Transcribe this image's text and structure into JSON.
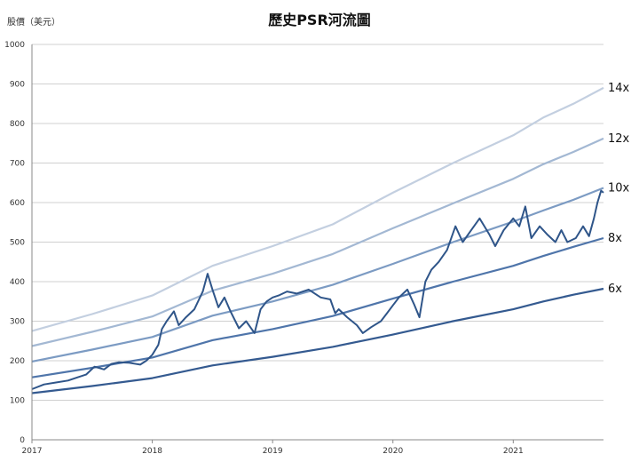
{
  "chart_data": {
    "type": "line",
    "title": "歷史PSR河流圖",
    "ylabel": "股價（美元）",
    "xlabel": "",
    "ylim": [
      0,
      1000
    ],
    "y_ticks": [
      0,
      100,
      200,
      300,
      400,
      500,
      600,
      700,
      800,
      900,
      1000
    ],
    "x_range": [
      2017,
      2021.75
    ],
    "x_ticks": [
      "2017",
      "2018",
      "2019",
      "2020",
      "2021"
    ],
    "x_tick_values": [
      2017,
      2018,
      2019,
      2020,
      2021
    ],
    "grid": "horizontal",
    "bands": [
      {
        "label": "14x",
        "color": "#c3cfe0",
        "x": [
          2017,
          2017.5,
          2018,
          2018.5,
          2019,
          2019.5,
          2020,
          2020.5,
          2021,
          2021.25,
          2021.5,
          2021.75
        ],
        "y": [
          275,
          318,
          365,
          440,
          490,
          545,
          625,
          700,
          770,
          815,
          850,
          890
        ]
      },
      {
        "label": "12x",
        "color": "#a3b8d3",
        "x": [
          2017,
          2017.5,
          2018,
          2018.5,
          2019,
          2019.5,
          2020,
          2020.5,
          2021,
          2021.25,
          2021.5,
          2021.75
        ],
        "y": [
          237,
          273,
          312,
          377,
          420,
          470,
          535,
          598,
          660,
          697,
          728,
          762
        ]
      },
      {
        "label": "10x",
        "color": "#7c9bc3",
        "x": [
          2017,
          2017.5,
          2018,
          2018.5,
          2019,
          2019.5,
          2020,
          2020.5,
          2021,
          2021.25,
          2021.5,
          2021.75
        ],
        "y": [
          198,
          228,
          260,
          314,
          350,
          392,
          445,
          500,
          552,
          580,
          607,
          637
        ]
      },
      {
        "label": "8x",
        "color": "#4f75aa",
        "x": [
          2017,
          2017.5,
          2018,
          2018.5,
          2019,
          2019.5,
          2020,
          2020.5,
          2021,
          2021.25,
          2021.5,
          2021.75
        ],
        "y": [
          158,
          182,
          208,
          252,
          280,
          313,
          357,
          400,
          440,
          465,
          488,
          510
        ]
      },
      {
        "label": "6x",
        "color": "#345a90",
        "x": [
          2017,
          2017.5,
          2018,
          2018.5,
          2019,
          2019.5,
          2020,
          2020.5,
          2021,
          2021.25,
          2021.5,
          2021.75
        ],
        "y": [
          118,
          136,
          156,
          188,
          210,
          235,
          266,
          300,
          330,
          350,
          367,
          382
        ]
      }
    ],
    "price_series": {
      "name": "",
      "color": "#2f5589",
      "x": [
        2017,
        2017.1,
        2017.2,
        2017.3,
        2017.38,
        2017.45,
        2017.52,
        2017.6,
        2017.66,
        2017.72,
        2017.8,
        2017.9,
        2017.95,
        2018.0,
        2018.05,
        2018.08,
        2018.12,
        2018.18,
        2018.22,
        2018.28,
        2018.35,
        2018.42,
        2018.46,
        2018.5,
        2018.55,
        2018.6,
        2018.65,
        2018.72,
        2018.78,
        2018.85,
        2018.9,
        2018.95,
        2019.0,
        2019.05,
        2019.12,
        2019.2,
        2019.3,
        2019.4,
        2019.48,
        2019.52,
        2019.55,
        2019.62,
        2019.7,
        2019.75,
        2019.82,
        2019.9,
        2019.95,
        2020.0,
        2020.05,
        2020.12,
        2020.18,
        2020.22,
        2020.27,
        2020.32,
        2020.38,
        2020.45,
        2020.52,
        2020.58,
        2020.65,
        2020.72,
        2020.8,
        2020.85,
        2020.92,
        2021.0,
        2021.05,
        2021.1,
        2021.15,
        2021.22,
        2021.28,
        2021.35,
        2021.4,
        2021.45,
        2021.52,
        2021.58,
        2021.63,
        2021.67,
        2021.7,
        2021.73,
        2021.75
      ],
      "y": [
        128,
        140,
        145,
        150,
        158,
        165,
        185,
        178,
        192,
        196,
        195,
        190,
        200,
        215,
        240,
        280,
        300,
        325,
        290,
        310,
        330,
        375,
        420,
        380,
        335,
        360,
        325,
        282,
        300,
        270,
        330,
        350,
        360,
        365,
        375,
        370,
        380,
        360,
        355,
        320,
        330,
        310,
        290,
        270,
        285,
        300,
        320,
        340,
        360,
        380,
        340,
        310,
        400,
        430,
        450,
        480,
        540,
        500,
        530,
        560,
        520,
        490,
        530,
        560,
        540,
        590,
        510,
        540,
        520,
        500,
        530,
        500,
        510,
        540,
        515,
        560,
        600,
        630,
        625
      ]
    }
  }
}
